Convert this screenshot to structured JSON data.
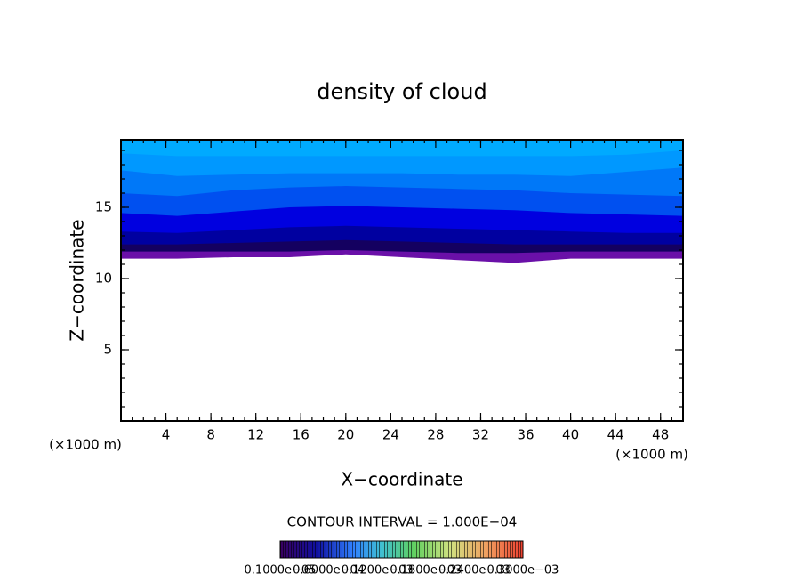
{
  "chart_data": {
    "type": "contour",
    "title": "density of cloud",
    "xlabel": "X−coordinate",
    "ylabel": "Z−coordinate",
    "xunit": "(×1000 m)",
    "yunit": "(×1000 m)",
    "xlim": [
      0,
      50
    ],
    "ylim": [
      0,
      19.75
    ],
    "xticks": [
      4,
      8,
      12,
      16,
      20,
      24,
      28,
      32,
      36,
      40,
      44,
      48
    ],
    "yticks": [
      5,
      10,
      15
    ],
    "x": [
      0,
      5,
      10,
      15,
      20,
      25,
      30,
      35,
      40,
      45,
      50
    ],
    "series": [
      {
        "color": "#6a10a8",
        "values": [
          11.4,
          11.4,
          11.5,
          11.5,
          11.7,
          11.5,
          11.3,
          11.1,
          11.4,
          11.4,
          11.4
        ]
      },
      {
        "color": "#140060",
        "values": [
          11.9,
          11.9,
          11.9,
          11.9,
          12.0,
          11.9,
          11.8,
          11.8,
          11.9,
          11.9,
          11.9
        ]
      },
      {
        "color": "#0000a0",
        "values": [
          12.4,
          12.4,
          12.5,
          12.6,
          12.7,
          12.6,
          12.5,
          12.4,
          12.4,
          12.4,
          12.4
        ]
      },
      {
        "color": "#0000e0",
        "values": [
          13.3,
          13.2,
          13.4,
          13.6,
          13.7,
          13.6,
          13.5,
          13.4,
          13.3,
          13.2,
          13.2
        ]
      },
      {
        "color": "#0050f0",
        "values": [
          14.6,
          14.4,
          14.7,
          15.0,
          15.1,
          15.0,
          14.9,
          14.8,
          14.6,
          14.5,
          14.4
        ]
      },
      {
        "color": "#0078f8",
        "values": [
          16.0,
          15.8,
          16.2,
          16.4,
          16.5,
          16.4,
          16.3,
          16.2,
          16.0,
          15.9,
          15.8
        ]
      },
      {
        "color": "#0098ff",
        "values": [
          17.6,
          17.2,
          17.3,
          17.4,
          17.4,
          17.4,
          17.3,
          17.3,
          17.2,
          17.5,
          17.8
        ]
      },
      {
        "color": "#00aaff",
        "values": [
          18.8,
          18.6,
          18.6,
          18.6,
          18.6,
          18.6,
          18.6,
          18.6,
          18.6,
          18.7,
          19.0
        ]
      }
    ],
    "annotation": "CONTOUR INTERVAL = 1.000E−04",
    "colorbar_labels": [
      "0.1000e−05",
      "0.6000e−04",
      "0.1200e−03",
      "0.1800e−03",
      "0.2400e−03",
      "0.3000e−03"
    ]
  }
}
